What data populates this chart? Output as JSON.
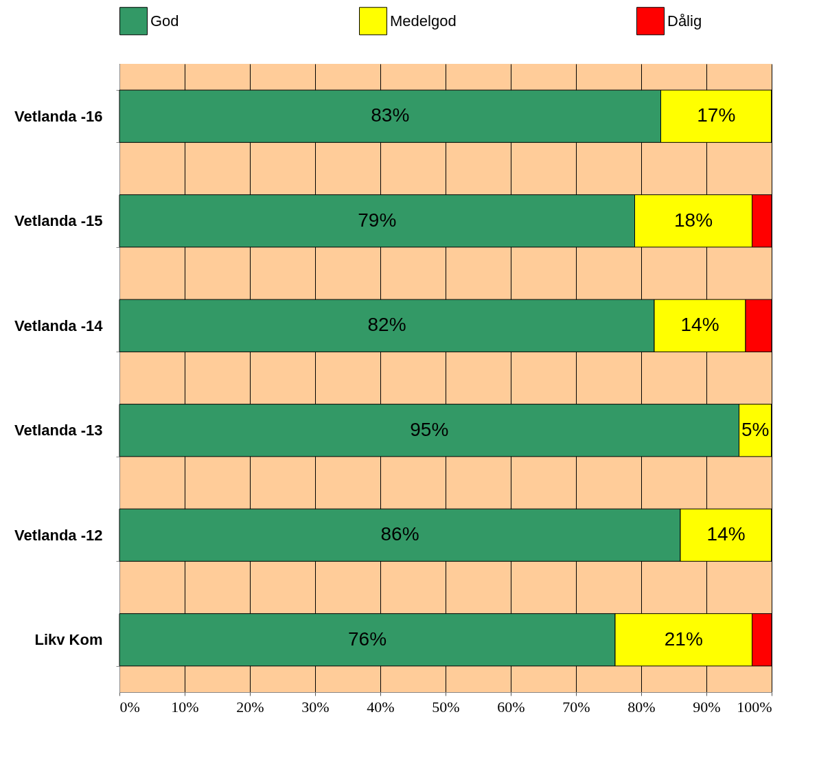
{
  "chart_data": {
    "type": "bar",
    "orientation": "horizontal",
    "stacked": true,
    "categories": [
      "Vetlanda -16",
      "Vetlanda -15",
      "Vetlanda -14",
      "Vetlanda -13",
      "Vetlanda -12",
      "Likv Kom"
    ],
    "series": [
      {
        "name": "God",
        "color": "#339966",
        "values": [
          83,
          79,
          82,
          95,
          86,
          76
        ],
        "value_labels": [
          "83%",
          "79%",
          "82%",
          "95%",
          "86%",
          "76%"
        ]
      },
      {
        "name": "Medelgod",
        "color": "#ffff00",
        "values": [
          17,
          18,
          14,
          5,
          14,
          21
        ],
        "value_labels": [
          "17%",
          "18%",
          "14%",
          "5%",
          "14%",
          "21%"
        ]
      },
      {
        "name": "Dålig",
        "color": "#ff0000",
        "values": [
          0,
          3,
          4,
          0,
          0,
          3
        ],
        "value_labels": [
          null,
          null,
          null,
          null,
          null,
          null
        ]
      }
    ],
    "xlim": [
      0,
      100
    ],
    "xticks": [
      {
        "value": 0,
        "label": "0%"
      },
      {
        "value": 10,
        "label": "10%"
      },
      {
        "value": 20,
        "label": "20%"
      },
      {
        "value": 30,
        "label": "30%"
      },
      {
        "value": 40,
        "label": "40%"
      },
      {
        "value": 50,
        "label": "50%"
      },
      {
        "value": 60,
        "label": "60%"
      },
      {
        "value": 70,
        "label": "70%"
      },
      {
        "value": 80,
        "label": "80%"
      },
      {
        "value": 90,
        "label": "90%"
      },
      {
        "value": 100,
        "label": "100%"
      }
    ],
    "grid": "x",
    "legend": "top"
  }
}
